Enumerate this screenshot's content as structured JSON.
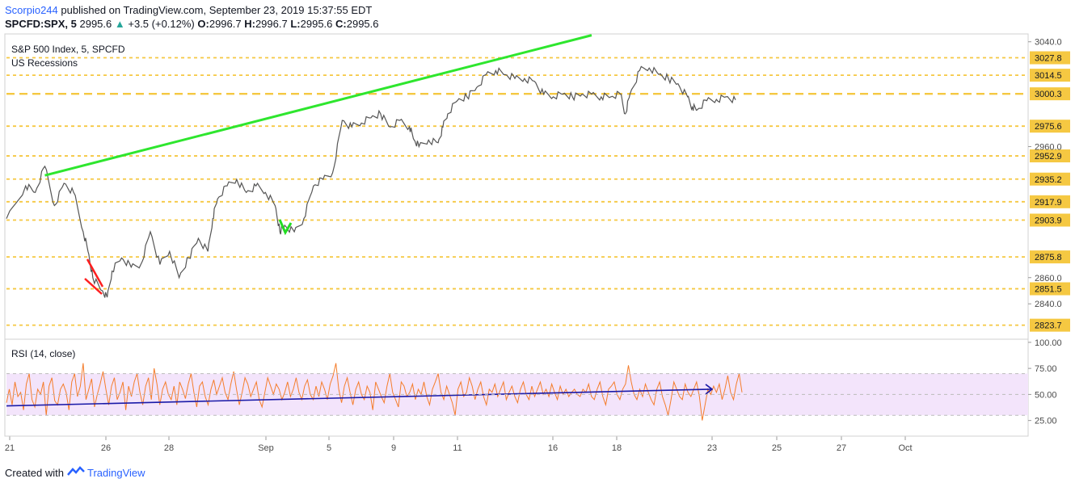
{
  "header": {
    "author": "Scorpio244",
    "published_text": " published on TradingView.com, September 23, 2019 15:37:55 EDT"
  },
  "quote": {
    "symbol": "SPCFD:SPX, 5",
    "last": "2995.6",
    "up_arrow": "▲",
    "change": "+3.5 (+0.12%)",
    "o_label": "O:",
    "o": "2996.7",
    "h_label": "H:",
    "h": "2996.7",
    "l_label": "L:",
    "l": "2995.6",
    "c_label": "C:",
    "c": "2995.6"
  },
  "footer": {
    "created_with": "Created with",
    "brand": "TradingView"
  },
  "colors": {
    "price": "#555555",
    "up_wick": "#6b6b6b",
    "level_line": "#f5c842",
    "trendline": "#2ee62e",
    "red_marker": "#ff1f1f",
    "green_marker": "#22dd22",
    "rsi_line": "#f47d2c",
    "rsi_band": "#f3e4fb",
    "rsi_trend": "#1a1aa8",
    "axis_text": "#4a4a4a"
  },
  "chart_data": [
    {
      "type": "line",
      "title": "S&P 500 Index, 5, SPCFD",
      "subtitle": "US Recessions",
      "ylim": [
        2813,
        3046
      ],
      "x_tick_labels": [
        "21",
        "26",
        "28",
        "Sep",
        "5",
        "9",
        "11",
        "16",
        "18",
        "23",
        "25",
        "27",
        "Oct"
      ],
      "y_tick_labels": [
        "3040.0",
        "2960.0",
        "2860.0",
        "2840.0"
      ],
      "level_labels": [
        "3027.8",
        "3014.5",
        "3000.3",
        "2975.6",
        "2952.9",
        "2935.2",
        "2917.9",
        "2903.9",
        "2875.8",
        "2851.5",
        "2823.7"
      ],
      "levels": [
        3027.8,
        3014.5,
        3000.3,
        2975.6,
        2952.9,
        2935.2,
        2917.9,
        2903.9,
        2875.8,
        2851.5,
        2823.7
      ],
      "price_path": [
        [
          0,
          2905
        ],
        [
          2,
          2930
        ],
        [
          3,
          2925
        ],
        [
          4,
          2945
        ],
        [
          5,
          2915
        ],
        [
          6,
          2932
        ],
        [
          7,
          2925
        ],
        [
          8,
          2895
        ],
        [
          8.5,
          2880
        ],
        [
          9,
          2860
        ],
        [
          10,
          2850
        ],
        [
          10.5,
          2845
        ],
        [
          11,
          2865
        ],
        [
          12,
          2875
        ],
        [
          13,
          2868
        ],
        [
          14,
          2870
        ],
        [
          15,
          2895
        ],
        [
          16,
          2870
        ],
        [
          17,
          2880
        ],
        [
          18,
          2860
        ],
        [
          19,
          2875
        ],
        [
          20,
          2890
        ],
        [
          21,
          2880
        ],
        [
          21.5,
          2905
        ],
        [
          22,
          2920
        ],
        [
          23,
          2930
        ],
        [
          24,
          2935
        ],
        [
          25,
          2925
        ],
        [
          26,
          2930
        ],
        [
          27,
          2925
        ],
        [
          28,
          2915
        ],
        [
          28.5,
          2895
        ],
        [
          29,
          2900
        ],
        [
          30,
          2895
        ],
        [
          31,
          2905
        ],
        [
          32,
          2930
        ],
        [
          33,
          2935
        ],
        [
          34,
          2940
        ],
        [
          35,
          2980
        ],
        [
          36,
          2975
        ],
        [
          37,
          2978
        ],
        [
          38,
          2982
        ],
        [
          39,
          2985
        ],
        [
          40,
          2975
        ],
        [
          41,
          2980
        ],
        [
          42,
          2975
        ],
        [
          42.5,
          2965
        ],
        [
          43,
          2960
        ],
        [
          44,
          2965
        ],
        [
          45,
          2963
        ],
        [
          45.5,
          2975
        ],
        [
          46,
          2985
        ],
        [
          47,
          2995
        ],
        [
          48,
          2998
        ],
        [
          49,
          3005
        ],
        [
          50,
          3015
        ],
        [
          51,
          3018
        ],
        [
          52,
          3015
        ],
        [
          53,
          3012
        ],
        [
          54,
          3012
        ],
        [
          55,
          3010
        ],
        [
          56,
          3000
        ],
        [
          57,
          2998
        ],
        [
          58,
          3000
        ],
        [
          59,
          2998
        ],
        [
          60,
          3000
        ],
        [
          61,
          3000
        ],
        [
          62,
          2998
        ],
        [
          63,
          2998
        ],
        [
          64,
          3000
        ],
        [
          64.5,
          2985
        ],
        [
          65,
          3000
        ],
        [
          66,
          3018
        ],
        [
          67,
          3020
        ],
        [
          68,
          3015
        ],
        [
          69,
          3012
        ],
        [
          70,
          3008
        ],
        [
          71,
          2998
        ],
        [
          71.5,
          2990
        ],
        [
          72,
          2988
        ],
        [
          73,
          2995
        ],
        [
          74,
          2996
        ],
        [
          75,
          2998
        ],
        [
          76,
          2995.6
        ]
      ],
      "trendline": [
        [
          4,
          2938
        ],
        [
          61,
          3045
        ]
      ],
      "price_axis_range": [
        0,
        76
      ]
    },
    {
      "type": "line",
      "title": "RSI (14, close)",
      "ylim": [
        10,
        103
      ],
      "y_tick_labels": [
        "100.00",
        "75.00",
        "50.00",
        "25.00"
      ],
      "y_ticks": [
        100,
        75,
        50,
        25
      ],
      "band": [
        30,
        70
      ],
      "trend": [
        [
          0,
          39
        ],
        [
          71,
          55
        ]
      ],
      "values": [
        42,
        55,
        40,
        62,
        48,
        52,
        35,
        60,
        70,
        45,
        38,
        55,
        50,
        62,
        30,
        58,
        66,
        44,
        40,
        55,
        60,
        52,
        35,
        62,
        70,
        48,
        58,
        80,
        45,
        55,
        65,
        38,
        50,
        60,
        72,
        55,
        40,
        58,
        66,
        45,
        52,
        62,
        35,
        58,
        48,
        62,
        70,
        52,
        40,
        58,
        66,
        45,
        75,
        60,
        40,
        55,
        62,
        50,
        45,
        58,
        40,
        62,
        55,
        46,
        60,
        70,
        52,
        38,
        58,
        62,
        48,
        40,
        55,
        64,
        50,
        58,
        66,
        52,
        45,
        60,
        72,
        55,
        40,
        52,
        66,
        60,
        48,
        55,
        62,
        45,
        38,
        52,
        66,
        58,
        50,
        60,
        55,
        45,
        52,
        62,
        48,
        55,
        66,
        52,
        45,
        58,
        64,
        50,
        45,
        58,
        48,
        62,
        55,
        45,
        60,
        68,
        80,
        55,
        42,
        58,
        66,
        52,
        40,
        55,
        62,
        50,
        45,
        58,
        52,
        35,
        62,
        55,
        48,
        42,
        58,
        70,
        52,
        45,
        38,
        62,
        58,
        48,
        52,
        60,
        45,
        55,
        50,
        62,
        48,
        40,
        55,
        62,
        70,
        52,
        45,
        58,
        50,
        42,
        30,
        55,
        62,
        48,
        52,
        66,
        58,
        45,
        55,
        62,
        48,
        40,
        55,
        52,
        60,
        48,
        55,
        62,
        45,
        52,
        58,
        48,
        42,
        55,
        62,
        50,
        45,
        58,
        48,
        55,
        62,
        50,
        55,
        48,
        60,
        52,
        45,
        58,
        50,
        55,
        48,
        52,
        55,
        50,
        48,
        55,
        52,
        60,
        48,
        45,
        55,
        62,
        48,
        40,
        55,
        58,
        62,
        50,
        45,
        55,
        60,
        78,
        62,
        50,
        45,
        55,
        48,
        60,
        52,
        45,
        40,
        55,
        62,
        48,
        40,
        30,
        45,
        62,
        55,
        48,
        45,
        60,
        52,
        48,
        55,
        62,
        48,
        25,
        40,
        55,
        50,
        58,
        52,
        60,
        45,
        55,
        68,
        52,
        45,
        60,
        70,
        52
      ],
      "last": 48
    }
  ]
}
